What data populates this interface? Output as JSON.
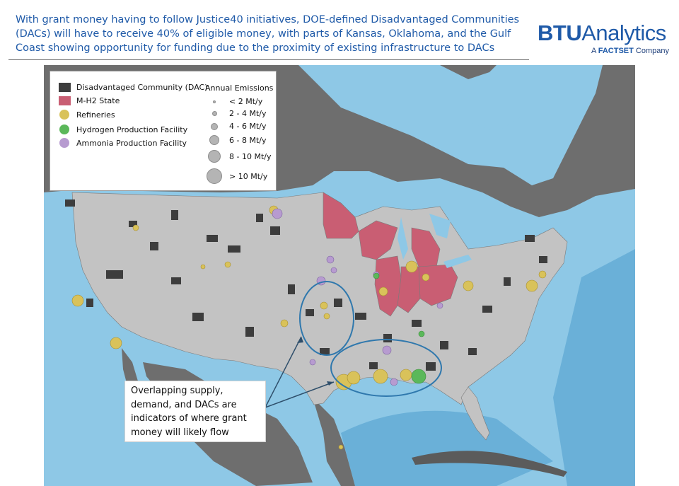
{
  "header": {
    "headline": "With grant money having to follow Justice40 initiatives, DOE-defined  Disadvantaged Communities (DACs) will have to receive 40% of eligible money, with parts of Kansas, Oklahoma, and the Gulf Coast showing opportunity for funding due to the proximity of existing infrastructure to DACs"
  },
  "brand": {
    "name_bold": "BTU",
    "name_rest": "Analytics",
    "sub_prefix": "A ",
    "sub_bold": "FACTSET",
    "sub_suffix": " Company",
    "color": "#1f5aa8"
  },
  "legend": {
    "categories": [
      {
        "label": "Disadvantaged Community (DAC)",
        "color": "#3d3d3d",
        "shape": "square"
      },
      {
        "label": "M-H2 State",
        "color": "#c95e73",
        "shape": "square"
      },
      {
        "label": "Refineries",
        "color": "#d9c25a",
        "shape": "circle"
      },
      {
        "label": "Hydrogen Production Facility",
        "color": "#5bb85a",
        "shape": "circle"
      },
      {
        "label": "Ammonia Production Facility",
        "color": "#b79bd0",
        "shape": "circle"
      }
    ],
    "emissions_title": "Annual Emissions",
    "emissions": [
      {
        "label": "< 2 Mt/y"
      },
      {
        "label": "2 - 4 Mt/y"
      },
      {
        "label": "4 - 6 Mt/y"
      },
      {
        "label": "6 - 8 Mt/y"
      },
      {
        "label": "8 - 10 Mt/y"
      },
      {
        "label": "> 10 Mt/y"
      }
    ]
  },
  "callout": {
    "text": "Overlapping supply, demand, and DACs are indicators of where grant money will likely flow"
  },
  "colors": {
    "ocean": "#8ec8e6",
    "land_other": "#6e6e6e",
    "us_land": "#c3c3c3",
    "mh2": "#c95e73",
    "highlight_ellipse": "#2f78ad"
  }
}
